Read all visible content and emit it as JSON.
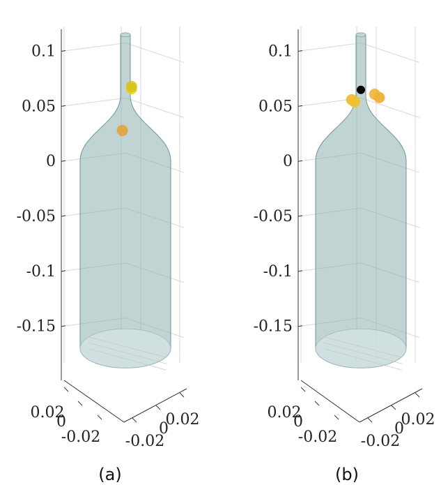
{
  "chart_data": [
    {
      "type": "scatter",
      "panel_label": "(a)",
      "view": "3d",
      "grid": true,
      "zlim": [
        -0.18,
        0.12
      ],
      "z_ticks": [
        "0.1",
        "0.05",
        "0",
        "-0.05",
        "-0.1",
        "-0.15"
      ],
      "x_ticks": [
        "0.02",
        "0",
        "-0.02"
      ],
      "y_ticks": [
        "-0.02",
        "0",
        "0.02"
      ],
      "surface": {
        "shape": "bottle",
        "color": "#8db1b1"
      },
      "points": [
        {
          "x": 0.004,
          "y": 0.0,
          "z": 0.066,
          "color": "#e6d21f"
        },
        {
          "x": 0.004,
          "y": 0.0,
          "z": 0.068,
          "color": "#d9c21b"
        },
        {
          "x": -0.002,
          "y": 0.0,
          "z": 0.028,
          "color": "#e6a23a"
        }
      ]
    },
    {
      "type": "scatter",
      "panel_label": "(b)",
      "view": "3d",
      "grid": true,
      "zlim": [
        -0.18,
        0.12
      ],
      "z_ticks": [
        "0.1",
        "0.05",
        "0",
        "-0.05",
        "-0.1",
        "-0.15"
      ],
      "x_ticks": [
        "0.02",
        "0",
        "-0.02"
      ],
      "y_ticks": [
        "-0.02",
        "0",
        "0.02"
      ],
      "surface": {
        "shape": "bottle",
        "color": "#8db1b1"
      },
      "points": [
        {
          "x": 0.0,
          "y": 0.0,
          "z": 0.065,
          "color": "#000000"
        },
        {
          "x": -0.006,
          "y": 0.0,
          "z": 0.056,
          "color": "#f2b62c"
        },
        {
          "x": -0.004,
          "y": 0.0,
          "z": 0.054,
          "color": "#efc030"
        },
        {
          "x": 0.012,
          "y": 0.0,
          "z": 0.058,
          "color": "#eeaa2d"
        },
        {
          "x": 0.009,
          "y": 0.0,
          "z": 0.061,
          "color": "#f0b436"
        }
      ]
    }
  ]
}
